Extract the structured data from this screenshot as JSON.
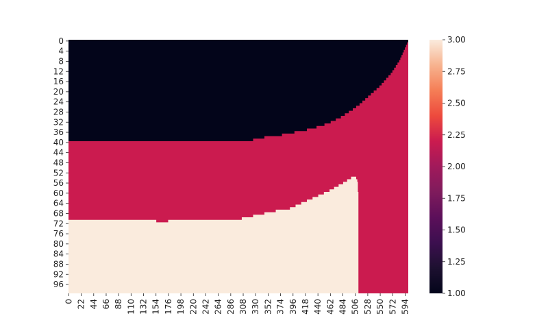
{
  "chart_data": {
    "type": "heatmap",
    "title": "",
    "xlabel": "",
    "ylabel": "",
    "rows": 100,
    "cols": 600,
    "x_ticks": [
      0,
      22,
      44,
      66,
      88,
      110,
      132,
      154,
      176,
      198,
      220,
      242,
      264,
      286,
      308,
      330,
      352,
      374,
      396,
      418,
      440,
      462,
      484,
      506,
      528,
      550,
      572,
      594
    ],
    "y_ticks": [
      0,
      4,
      8,
      12,
      16,
      20,
      24,
      28,
      32,
      36,
      40,
      44,
      48,
      52,
      56,
      60,
      64,
      68,
      72,
      76,
      80,
      84,
      88,
      92,
      96
    ],
    "colorbar": {
      "min": 1.0,
      "max": 3.0,
      "ticks": [
        "1.00",
        "1.25",
        "1.50",
        "1.75",
        "2.00",
        "2.25",
        "2.50",
        "2.75",
        "3.00"
      ],
      "colormap": "rocket"
    },
    "values_present": [
      1,
      2,
      3
    ],
    "value_colors": {
      "1": "#03051a",
      "2": "#cb1b4f",
      "3": "#faebdd"
    },
    "region_value_1_bottom_row_by_col": [
      [
        0,
        39
      ],
      [
        325,
        39
      ],
      [
        326,
        38
      ],
      [
        345,
        38
      ],
      [
        346,
        37
      ],
      [
        366,
        37
      ],
      [
        386,
        36
      ],
      [
        410,
        35
      ],
      [
        430,
        34
      ],
      [
        445,
        33
      ],
      [
        457,
        32
      ],
      [
        467,
        31
      ],
      [
        476,
        30
      ],
      [
        484,
        29
      ],
      [
        491,
        28
      ],
      [
        498,
        27
      ],
      [
        504,
        26
      ],
      [
        510,
        25
      ],
      [
        516,
        24
      ],
      [
        521,
        23
      ],
      [
        526,
        22
      ],
      [
        531,
        21
      ],
      [
        536,
        20
      ],
      [
        541,
        19
      ],
      [
        546,
        18
      ],
      [
        550,
        17
      ],
      [
        554,
        16
      ],
      [
        558,
        15
      ],
      [
        562,
        14
      ],
      [
        566,
        13
      ],
      [
        570,
        12
      ],
      [
        573,
        11
      ],
      [
        576,
        10
      ],
      [
        579,
        9
      ],
      [
        582,
        8
      ],
      [
        584,
        7
      ],
      [
        586,
        6
      ],
      [
        588,
        5
      ],
      [
        590,
        4
      ],
      [
        592,
        3
      ],
      [
        594,
        2
      ],
      [
        596,
        1
      ],
      [
        598,
        0
      ],
      [
        599,
        0
      ]
    ],
    "region_value_3_top_row_by_col": [
      [
        0,
        71
      ],
      [
        154,
        71
      ],
      [
        155,
        72
      ],
      [
        175,
        72
      ],
      [
        176,
        71
      ],
      [
        305,
        71
      ],
      [
        306,
        70
      ],
      [
        325,
        70
      ],
      [
        326,
        69
      ],
      [
        345,
        69
      ],
      [
        346,
        68
      ],
      [
        365,
        68
      ],
      [
        366,
        67
      ],
      [
        385,
        67
      ],
      [
        395,
        66
      ],
      [
        405,
        65
      ],
      [
        415,
        64
      ],
      [
        425,
        63
      ],
      [
        435,
        62
      ],
      [
        445,
        61
      ],
      [
        455,
        60
      ],
      [
        465,
        59
      ],
      [
        472,
        58
      ],
      [
        480,
        57
      ],
      [
        488,
        56
      ],
      [
        495,
        55
      ],
      [
        501,
        54
      ],
      [
        506,
        54
      ],
      [
        509,
        55
      ],
      [
        510,
        56
      ],
      [
        511,
        60
      ],
      [
        512,
        60
      ]
    ],
    "region_value_3_right_col": 512
  }
}
